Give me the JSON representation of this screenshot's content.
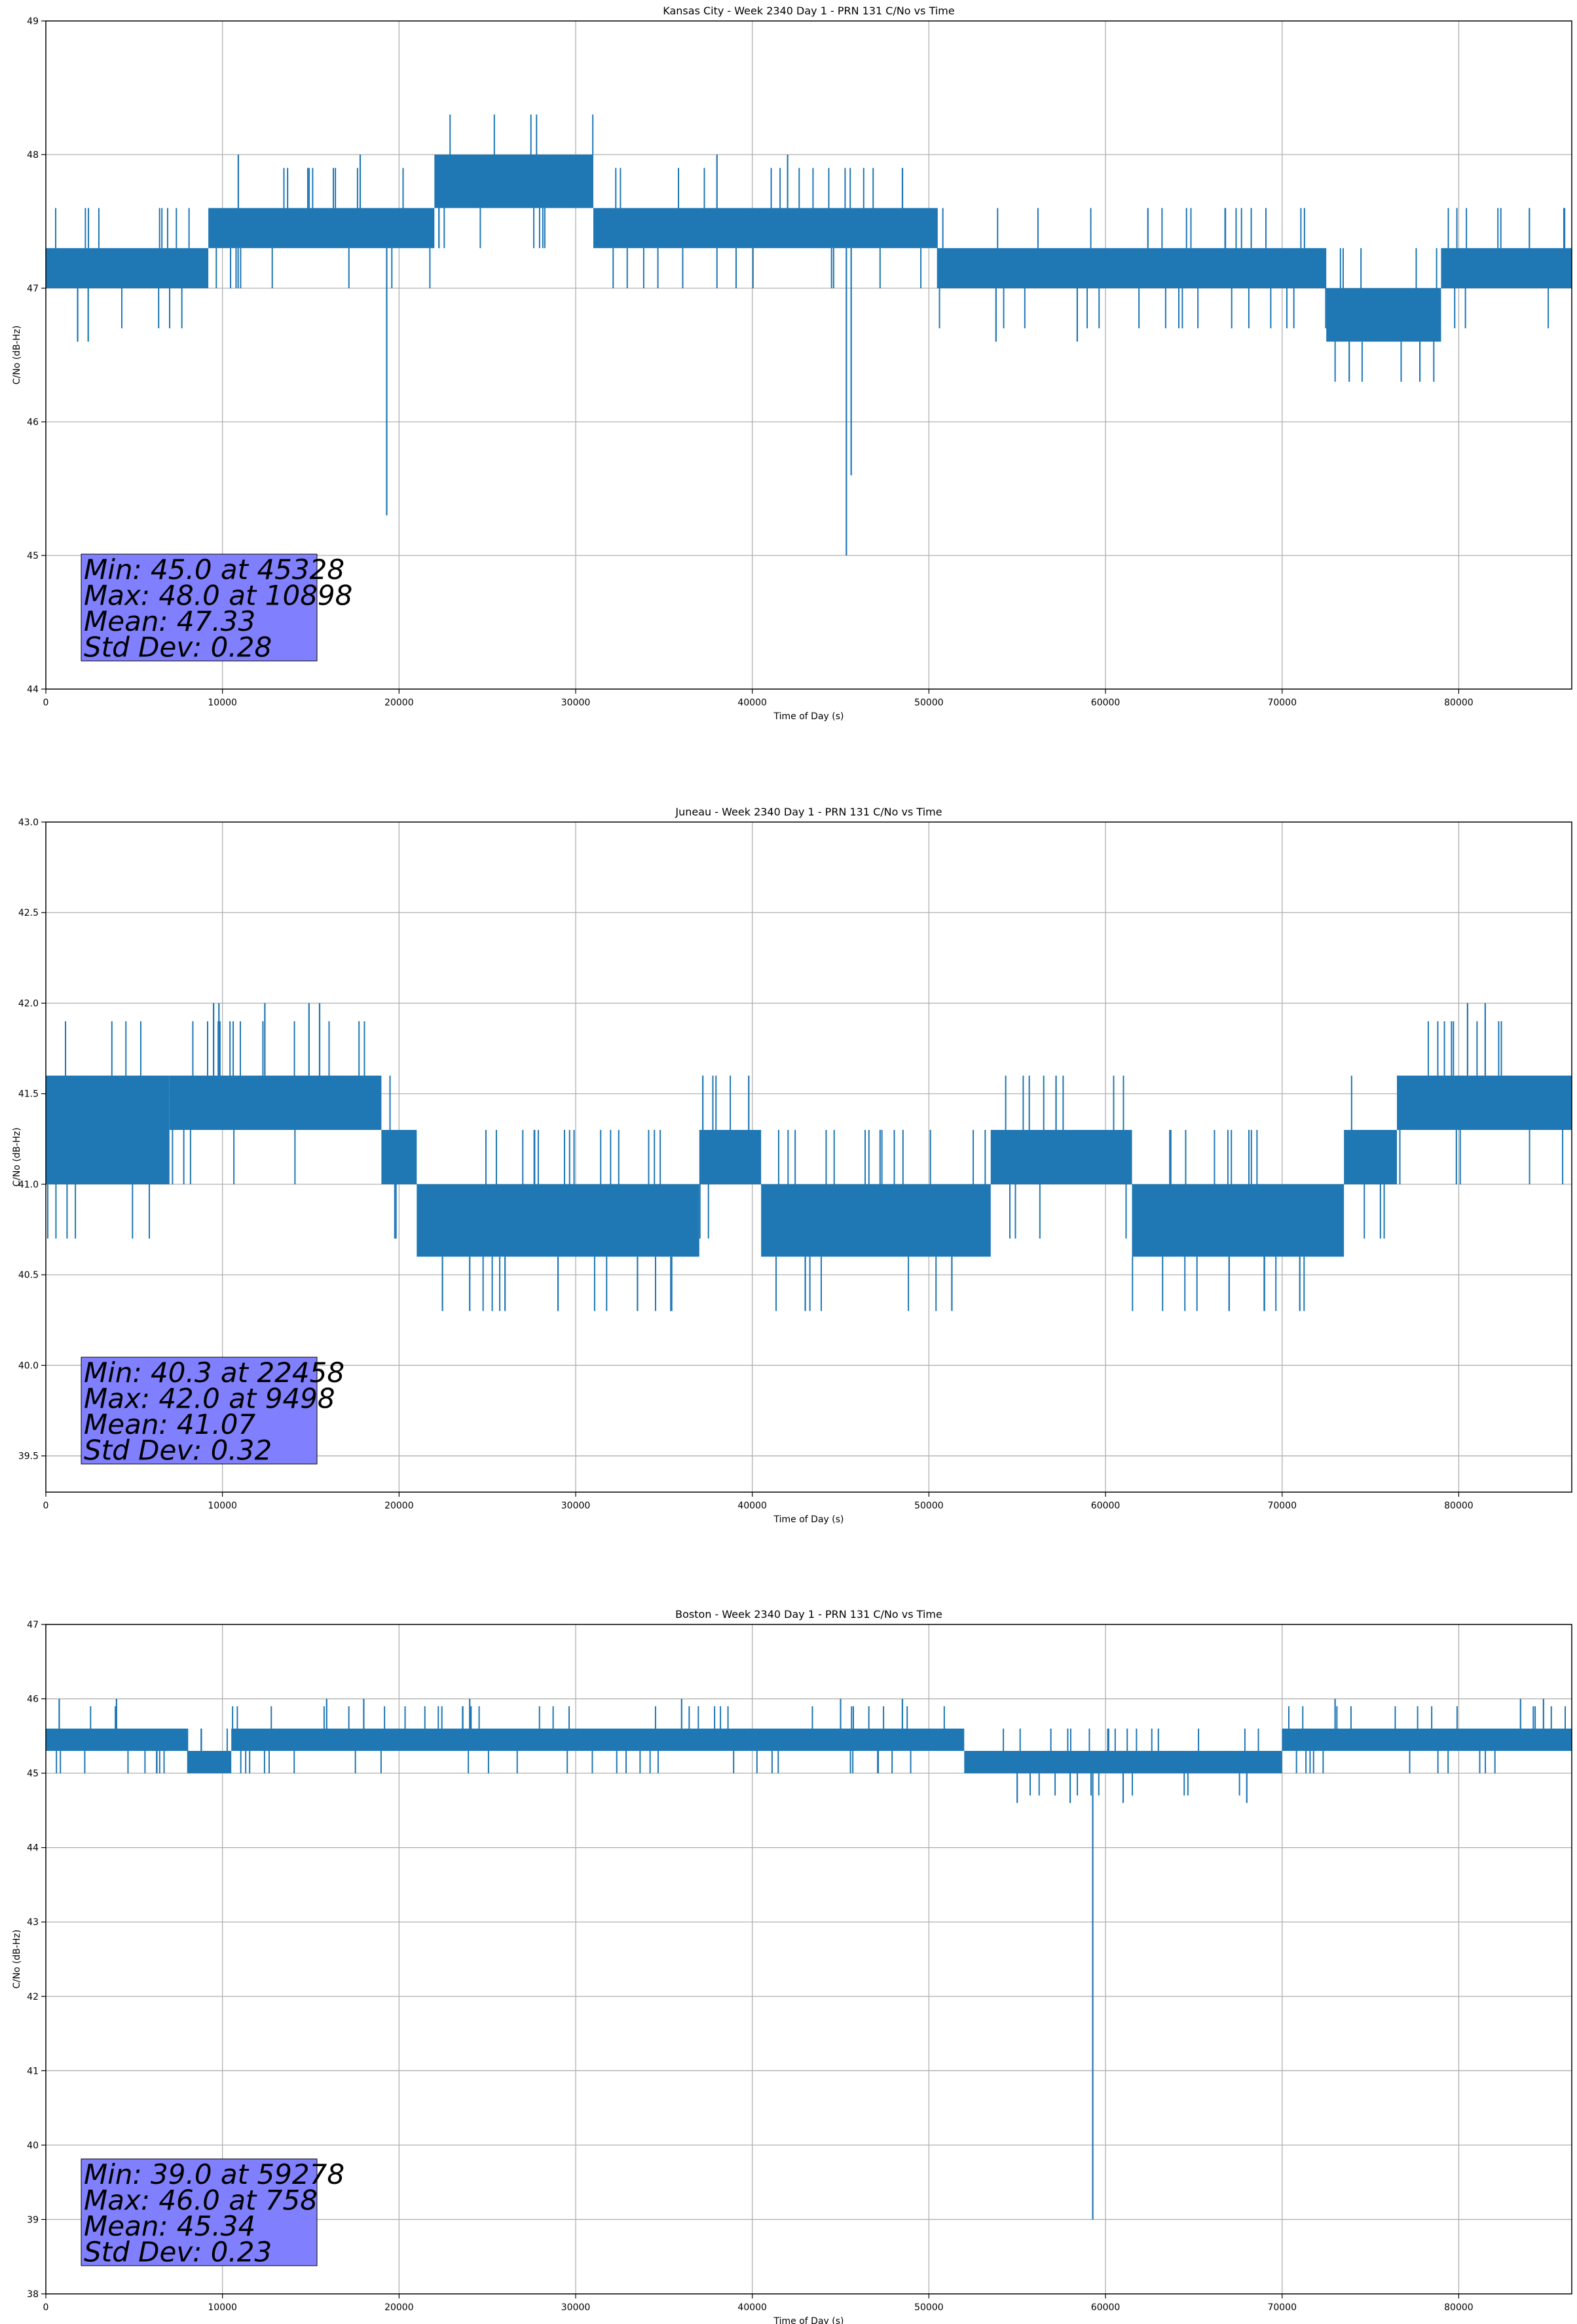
{
  "colors": {
    "series": "#1f77b4",
    "stats_box": "#8080ff",
    "grid": "#b0b0b0"
  },
  "chart_data": [
    {
      "type": "line",
      "title": "Kansas City - Week 2340 Day 1 - PRN 131 C/No vs Time",
      "xlabel": "Time of Day (s)",
      "ylabel": "C/No (dB-Hz)",
      "xlim": [
        0,
        86400
      ],
      "ylim": [
        44,
        49
      ],
      "xticks": [
        0,
        10000,
        20000,
        30000,
        40000,
        50000,
        60000,
        70000,
        80000
      ],
      "xtick_labels": [
        "0",
        "10000",
        "20000",
        "30000",
        "40000",
        "50000",
        "60000",
        "70000",
        "80000"
      ],
      "yticks": [
        44,
        45,
        46,
        47,
        48,
        49
      ],
      "ytick_labels": [
        "44",
        "45",
        "46",
        "47",
        "48",
        "49"
      ],
      "grid": true,
      "segments": [
        {
          "x0": 0,
          "x1": 9200,
          "lo": 47.0,
          "hi": 47.3
        },
        {
          "x0": 9200,
          "x1": 22000,
          "lo": 47.3,
          "hi": 47.6
        },
        {
          "x0": 22000,
          "x1": 31000,
          "lo": 47.6,
          "hi": 48.0
        },
        {
          "x0": 31000,
          "x1": 50500,
          "lo": 47.3,
          "hi": 47.6
        },
        {
          "x0": 50500,
          "x1": 72500,
          "lo": 47.0,
          "hi": 47.3
        },
        {
          "x0": 72500,
          "x1": 79000,
          "lo": 46.6,
          "hi": 47.0
        },
        {
          "x0": 79000,
          "x1": 86400,
          "lo": 47.0,
          "hi": 47.3
        }
      ],
      "spikes": [
        {
          "x": 10898,
          "lo": 47.6,
          "hi": 48.0
        },
        {
          "x": 17800,
          "lo": 47.6,
          "hi": 48.0
        },
        {
          "x": 19300,
          "lo": 45.3,
          "hi": 47.3
        },
        {
          "x": 1800,
          "lo": 46.6,
          "hi": 47.0
        },
        {
          "x": 2400,
          "lo": 46.6,
          "hi": 47.0
        },
        {
          "x": 38000,
          "lo": 47.6,
          "hi": 48.0
        },
        {
          "x": 42000,
          "lo": 47.6,
          "hi": 48.0
        },
        {
          "x": 45328,
          "lo": 45.0,
          "hi": 47.3
        },
        {
          "x": 45600,
          "lo": 45.6,
          "hi": 47.3
        },
        {
          "x": 53800,
          "lo": 46.6,
          "hi": 47.0
        },
        {
          "x": 58400,
          "lo": 46.6,
          "hi": 47.0
        },
        {
          "x": 62400,
          "lo": 47.3,
          "hi": 47.6
        },
        {
          "x": 73800,
          "lo": 46.3,
          "hi": 46.6
        },
        {
          "x": 77800,
          "lo": 46.3,
          "hi": 46.6
        },
        {
          "x": 84000,
          "lo": 47.3,
          "hi": 47.6
        }
      ],
      "stats": [
        "Min: 45.0 at 45328",
        "Max: 48.0 at 10898",
        "Mean: 47.33",
        "Std Dev: 0.28"
      ]
    },
    {
      "type": "line",
      "title": "Juneau - Week 2340 Day 1 - PRN 131 C/No vs Time",
      "xlabel": "Time of Day (s)",
      "ylabel": "C/No (dB-Hz)",
      "xlim": [
        0,
        86400
      ],
      "ylim": [
        39.3,
        43.0
      ],
      "xticks": [
        0,
        10000,
        20000,
        30000,
        40000,
        50000,
        60000,
        70000,
        80000
      ],
      "xtick_labels": [
        "0",
        "10000",
        "20000",
        "30000",
        "40000",
        "50000",
        "60000",
        "70000",
        "80000"
      ],
      "yticks": [
        39.5,
        40.0,
        40.5,
        41.0,
        41.5,
        42.0,
        42.5,
        43.0
      ],
      "ytick_labels": [
        "39.5",
        "40.0",
        "40.5",
        "41.0",
        "41.5",
        "42.0",
        "42.5",
        "43.0"
      ],
      "grid": true,
      "segments": [
        {
          "x0": 0,
          "x1": 7000,
          "lo": 41.0,
          "hi": 41.6
        },
        {
          "x0": 7000,
          "x1": 19000,
          "lo": 41.3,
          "hi": 41.6
        },
        {
          "x0": 19000,
          "x1": 21000,
          "lo": 41.0,
          "hi": 41.3
        },
        {
          "x0": 21000,
          "x1": 37000,
          "lo": 40.6,
          "hi": 41.0
        },
        {
          "x0": 37000,
          "x1": 40500,
          "lo": 41.0,
          "hi": 41.3
        },
        {
          "x0": 40500,
          "x1": 53500,
          "lo": 40.6,
          "hi": 41.0
        },
        {
          "x0": 53500,
          "x1": 61500,
          "lo": 41.0,
          "hi": 41.3
        },
        {
          "x0": 61500,
          "x1": 73500,
          "lo": 40.6,
          "hi": 41.0
        },
        {
          "x0": 73500,
          "x1": 76500,
          "lo": 41.0,
          "hi": 41.3
        },
        {
          "x0": 76500,
          "x1": 86400,
          "lo": 41.3,
          "hi": 41.6
        }
      ],
      "spikes": [
        {
          "x": 9498,
          "lo": 41.6,
          "hi": 42.0
        },
        {
          "x": 9800,
          "lo": 41.6,
          "hi": 42.0
        },
        {
          "x": 12400,
          "lo": 41.6,
          "hi": 42.0
        },
        {
          "x": 14900,
          "lo": 41.6,
          "hi": 42.0
        },
        {
          "x": 15500,
          "lo": 41.6,
          "hi": 42.0
        },
        {
          "x": 22458,
          "lo": 40.3,
          "hi": 40.6
        },
        {
          "x": 24000,
          "lo": 40.3,
          "hi": 40.6
        },
        {
          "x": 26000,
          "lo": 40.3,
          "hi": 40.6
        },
        {
          "x": 29000,
          "lo": 40.3,
          "hi": 40.6
        },
        {
          "x": 33500,
          "lo": 40.3,
          "hi": 40.6
        },
        {
          "x": 43000,
          "lo": 40.3,
          "hi": 40.6
        },
        {
          "x": 51300,
          "lo": 40.3,
          "hi": 40.6
        },
        {
          "x": 67000,
          "lo": 40.3,
          "hi": 40.6
        },
        {
          "x": 69000,
          "lo": 40.3,
          "hi": 40.6
        },
        {
          "x": 71000,
          "lo": 40.3,
          "hi": 40.6
        },
        {
          "x": 80500,
          "lo": 41.6,
          "hi": 42.0
        },
        {
          "x": 81500,
          "lo": 41.6,
          "hi": 42.0
        },
        {
          "x": 37200,
          "lo": 41.3,
          "hi": 41.6
        },
        {
          "x": 39800,
          "lo": 41.3,
          "hi": 41.6
        },
        {
          "x": 57200,
          "lo": 41.3,
          "hi": 41.6
        }
      ],
      "stats": [
        "Min: 40.3 at 22458",
        "Max: 42.0 at 9498",
        "Mean: 41.07",
        "Std Dev: 0.32"
      ]
    },
    {
      "type": "line",
      "title": "Boston - Week 2340 Day 1 - PRN 131 C/No vs Time",
      "xlabel": "Time of Day (s)",
      "ylabel": "C/No (dB-Hz)",
      "xlim": [
        0,
        86400
      ],
      "ylim": [
        38,
        47
      ],
      "xticks": [
        0,
        10000,
        20000,
        30000,
        40000,
        50000,
        60000,
        70000,
        80000
      ],
      "xtick_labels": [
        "0",
        "10000",
        "20000",
        "30000",
        "40000",
        "50000",
        "60000",
        "70000",
        "80000"
      ],
      "yticks": [
        38,
        39,
        40,
        41,
        42,
        43,
        44,
        45,
        46,
        47
      ],
      "ytick_labels": [
        "38",
        "39",
        "40",
        "41",
        "42",
        "43",
        "44",
        "45",
        "46",
        "47"
      ],
      "grid": true,
      "segments": [
        {
          "x0": 0,
          "x1": 8000,
          "lo": 45.3,
          "hi": 45.6
        },
        {
          "x0": 8000,
          "x1": 10500,
          "lo": 45.0,
          "hi": 45.3
        },
        {
          "x0": 10500,
          "x1": 52000,
          "lo": 45.3,
          "hi": 45.6
        },
        {
          "x0": 52000,
          "x1": 70000,
          "lo": 45.0,
          "hi": 45.3
        },
        {
          "x0": 70000,
          "x1": 86400,
          "lo": 45.3,
          "hi": 45.6
        }
      ],
      "spikes": [
        {
          "x": 758,
          "lo": 45.6,
          "hi": 46.0
        },
        {
          "x": 4000,
          "lo": 45.6,
          "hi": 46.0
        },
        {
          "x": 15900,
          "lo": 45.6,
          "hi": 46.0
        },
        {
          "x": 18000,
          "lo": 45.6,
          "hi": 46.0
        },
        {
          "x": 24000,
          "lo": 45.6,
          "hi": 46.0
        },
        {
          "x": 36000,
          "lo": 45.6,
          "hi": 46.0
        },
        {
          "x": 45000,
          "lo": 45.6,
          "hi": 46.0
        },
        {
          "x": 48500,
          "lo": 45.6,
          "hi": 46.0
        },
        {
          "x": 59278,
          "lo": 39.0,
          "hi": 45.0
        },
        {
          "x": 55000,
          "lo": 44.6,
          "hi": 45.0
        },
        {
          "x": 58000,
          "lo": 44.6,
          "hi": 45.0
        },
        {
          "x": 61000,
          "lo": 44.6,
          "hi": 45.0
        },
        {
          "x": 68000,
          "lo": 44.6,
          "hi": 45.0
        },
        {
          "x": 73000,
          "lo": 45.6,
          "hi": 46.0
        },
        {
          "x": 83500,
          "lo": 45.6,
          "hi": 46.0
        },
        {
          "x": 84800,
          "lo": 45.6,
          "hi": 46.0
        }
      ],
      "stats": [
        "Min: 39.0 at 59278",
        "Max: 46.0 at 758",
        "Mean: 45.34",
        "Std Dev: 0.23"
      ]
    }
  ]
}
